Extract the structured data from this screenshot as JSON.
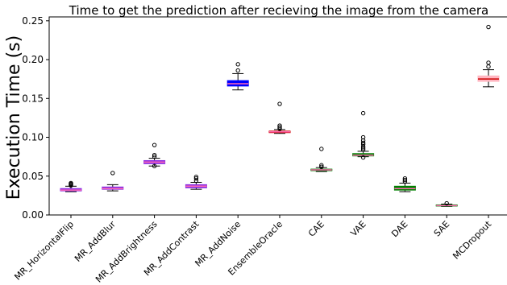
{
  "chart_data": {
    "type": "boxplot",
    "title": "Time to get the prediction after recieving the image from the camera",
    "xlabel": "",
    "ylabel": "Execution Time (s)",
    "ylim": [
      0.0,
      0.255
    ],
    "yticks": [
      0.0,
      0.05,
      0.1,
      0.15,
      0.2,
      0.25
    ],
    "ytick_labels": [
      "0.00",
      "0.05",
      "0.10",
      "0.15",
      "0.20",
      "0.25"
    ],
    "grid": false,
    "categories": [
      "MR_HorizontalFlip",
      "MR_AddBlur",
      "MR_AddBrightness",
      "MR_AddContrast",
      "MR_AddNoise",
      "EnsembleOracle",
      "CAE",
      "VAE",
      "DAE",
      "SAE",
      "MCDropout"
    ],
    "boxes": [
      {
        "label": "MR_HorizontalFlip",
        "color": "#8a2be2",
        "median_color": "#ff69b4",
        "whislo": 0.03,
        "q1": 0.031,
        "median": 0.032,
        "q3": 0.034,
        "whishi": 0.037,
        "fliers": [
          0.038,
          0.039,
          0.04,
          0.041
        ]
      },
      {
        "label": "MR_AddBlur",
        "color": "#8a2be2",
        "median_color": "#ff69b4",
        "whislo": 0.031,
        "q1": 0.033,
        "median": 0.034,
        "q3": 0.036,
        "whishi": 0.039,
        "fliers": [
          0.054
        ]
      },
      {
        "label": "MR_AddBrightness",
        "color": "#8a2be2",
        "median_color": "#ff69b4",
        "whislo": 0.063,
        "q1": 0.066,
        "median": 0.068,
        "q3": 0.07,
        "whishi": 0.073,
        "fliers": [
          0.063,
          0.075,
          0.077,
          0.09
        ]
      },
      {
        "label": "MR_AddContrast",
        "color": "#8a2be2",
        "median_color": "#ff69b4",
        "whislo": 0.033,
        "q1": 0.035,
        "median": 0.037,
        "q3": 0.039,
        "whishi": 0.042,
        "fliers": [
          0.044,
          0.047,
          0.049
        ]
      },
      {
        "label": "MR_AddNoise",
        "color": "#0000ff",
        "median_color": "#ff69b4",
        "whislo": 0.161,
        "q1": 0.166,
        "median": 0.169,
        "q3": 0.173,
        "whishi": 0.182,
        "fliers": [
          0.186,
          0.194
        ]
      },
      {
        "label": "EnsembleOracle",
        "color": "#cc0000",
        "median_color": "#ff69b4",
        "whislo": 0.105,
        "q1": 0.106,
        "median": 0.107,
        "q3": 0.108,
        "whishi": 0.11,
        "fliers": [
          0.111,
          0.113,
          0.115,
          0.143
        ]
      },
      {
        "label": "CAE",
        "color": "#008000",
        "median_color": "#ff69b4",
        "whislo": 0.056,
        "q1": 0.057,
        "median": 0.058,
        "q3": 0.059,
        "whishi": 0.061,
        "fliers": [
          0.062,
          0.064,
          0.085
        ]
      },
      {
        "label": "VAE",
        "color": "#008000",
        "median_color": "#ff69b4",
        "whislo": 0.075,
        "q1": 0.076,
        "median": 0.077,
        "q3": 0.079,
        "whishi": 0.082,
        "fliers": [
          0.074,
          0.084,
          0.086,
          0.088,
          0.091,
          0.093,
          0.096,
          0.1,
          0.131
        ]
      },
      {
        "label": "DAE",
        "color": "#008000",
        "median_color": "#ff69b4",
        "whislo": 0.03,
        "q1": 0.032,
        "median": 0.034,
        "q3": 0.037,
        "whishi": 0.041,
        "fliers": [
          0.043,
          0.045,
          0.047
        ]
      },
      {
        "label": "SAE",
        "color": "#008000",
        "median_color": "#ff69b4",
        "whislo": 0.011,
        "q1": 0.0115,
        "median": 0.012,
        "q3": 0.013,
        "whishi": 0.014,
        "fliers": [
          0.015
        ]
      },
      {
        "label": "MCDropout",
        "color": "#ffb6c1",
        "median_color": "#cc0000",
        "whislo": 0.165,
        "q1": 0.172,
        "median": 0.175,
        "q3": 0.179,
        "whishi": 0.187,
        "fliers": [
          0.191,
          0.196,
          0.242
        ]
      }
    ]
  }
}
